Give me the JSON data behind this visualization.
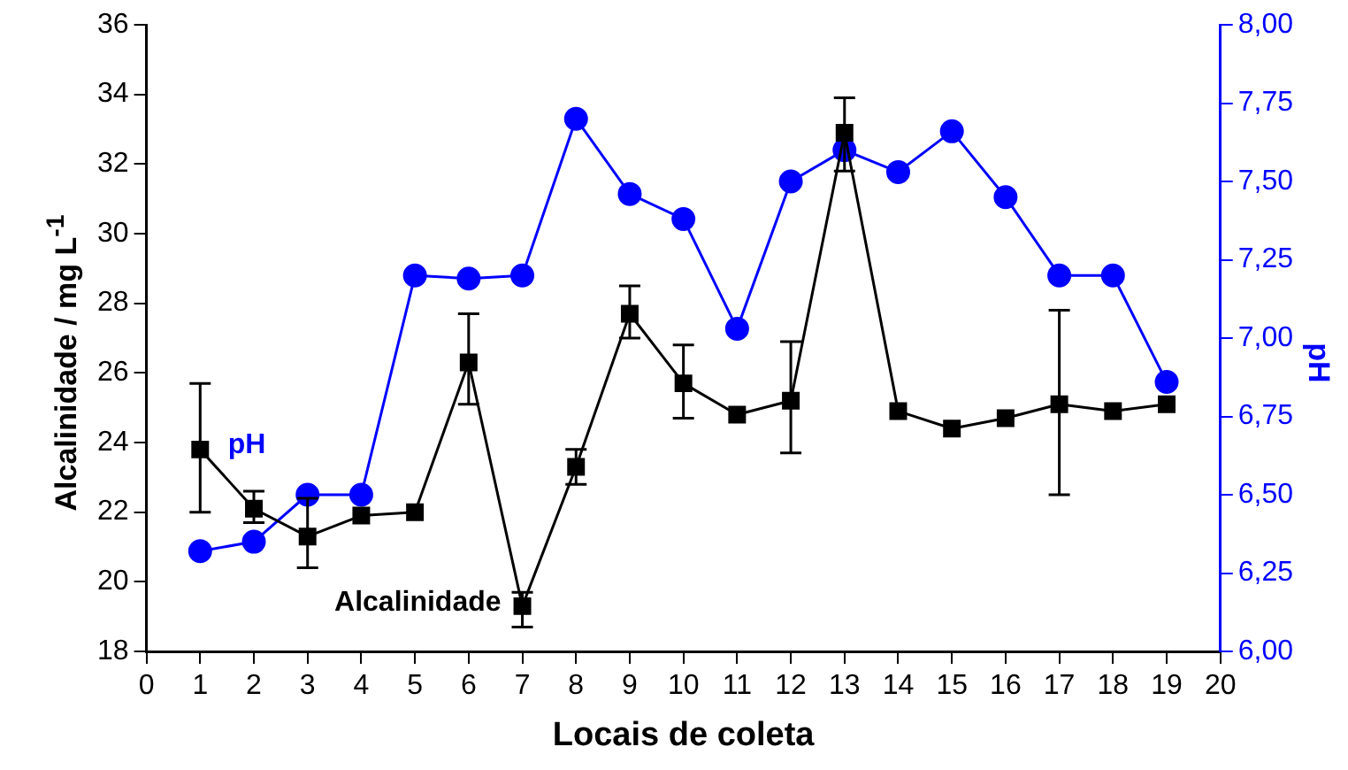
{
  "chart_data": {
    "type": "line",
    "xlabel": "Locais de coleta",
    "ylabel": "Alcalinidade / mg L$^{-1}$",
    "y2label": "pH",
    "x": [
      1,
      2,
      3,
      4,
      5,
      6,
      7,
      8,
      9,
      10,
      11,
      12,
      13,
      14,
      15,
      16,
      17,
      18,
      19
    ],
    "xlim": [
      0,
      20
    ],
    "xticks": [
      0,
      1,
      2,
      3,
      4,
      5,
      6,
      7,
      8,
      9,
      10,
      11,
      12,
      13,
      14,
      15,
      16,
      17,
      18,
      19,
      20
    ],
    "ylim": [
      18,
      36
    ],
    "yticks": [
      18,
      20,
      22,
      24,
      26,
      28,
      30,
      32,
      34,
      36
    ],
    "y2lim": [
      6,
      8
    ],
    "y2ticks": [
      {
        "value": 6,
        "label": "6,00"
      },
      {
        "value": 6.25,
        "label": "6,25"
      },
      {
        "value": 6.5,
        "label": "6,50"
      },
      {
        "value": 6.75,
        "label": "6,75"
      },
      {
        "value": 7,
        "label": "7,00"
      },
      {
        "value": 7.25,
        "label": "7,25"
      },
      {
        "value": 7.5,
        "label": "7,50"
      },
      {
        "value": 7.75,
        "label": "7,75"
      },
      {
        "value": 8,
        "label": "8,00"
      }
    ],
    "grid": false,
    "legend": false,
    "series": [
      {
        "name": "Alcalinidade",
        "color": "#000000",
        "marker": "square",
        "values": [
          23.8,
          22.1,
          21.3,
          21.9,
          22.0,
          26.3,
          19.3,
          23.3,
          27.7,
          25.7,
          24.8,
          25.2,
          32.9,
          24.9,
          24.4,
          24.7,
          25.1,
          24.9,
          25.1
        ],
        "errors": [
          [
            22.0,
            25.7
          ],
          [
            21.7,
            22.6
          ],
          [
            20.4,
            22.4
          ],
          null,
          null,
          [
            25.1,
            27.7
          ],
          [
            18.7,
            19.7
          ],
          [
            22.8,
            23.8
          ],
          [
            27.0,
            28.5
          ],
          [
            24.7,
            26.8
          ],
          null,
          [
            23.7,
            26.9
          ],
          [
            31.8,
            33.9
          ],
          null,
          null,
          null,
          [
            22.5,
            27.8
          ],
          null,
          null
        ]
      },
      {
        "name": "pH",
        "color": "#0000ff",
        "marker": "circle",
        "axis": "y2",
        "values": [
          6.32,
          6.35,
          6.5,
          6.5,
          7.2,
          7.19,
          7.2,
          7.7,
          7.46,
          7.38,
          7.03,
          7.5,
          7.6,
          7.53,
          7.66,
          7.45,
          7.2,
          7.2,
          6.86
        ]
      }
    ]
  }
}
